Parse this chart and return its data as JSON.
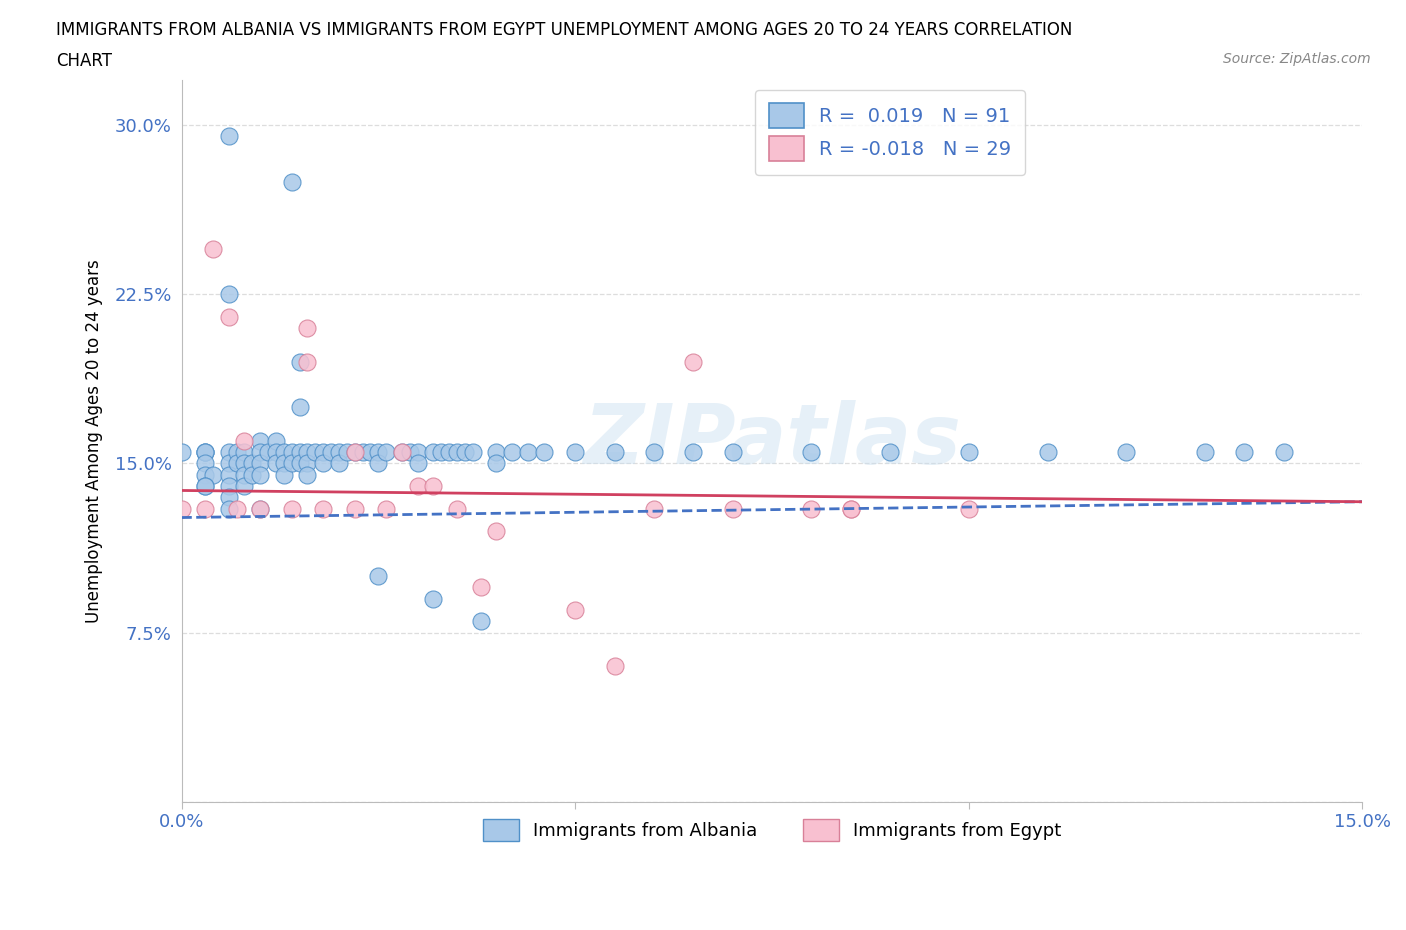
{
  "title_line1": "IMMIGRANTS FROM ALBANIA VS IMMIGRANTS FROM EGYPT UNEMPLOYMENT AMONG AGES 20 TO 24 YEARS CORRELATION",
  "title_line2": "CHART",
  "source_text": "Source: ZipAtlas.com",
  "ylabel": "Unemployment Among Ages 20 to 24 years",
  "xlim": [
    0.0,
    0.15
  ],
  "ylim": [
    0.0,
    0.32
  ],
  "albania_color": "#a8c8e8",
  "albania_edge_color": "#5090c8",
  "egypt_color": "#f8c0d0",
  "egypt_edge_color": "#d88098",
  "albania_line_color": "#4472c4",
  "egypt_line_color": "#d04060",
  "watermark": "ZIPatlas",
  "tick_label_color": "#4472c4",
  "background_color": "#ffffff",
  "grid_color": "#dddddd",
  "albania_x": [
    0.006,
    0.014,
    0.006,
    0.015,
    0.015,
    0.003,
    0.006,
    0.0,
    0.003,
    0.003,
    0.003,
    0.003,
    0.004,
    0.003,
    0.003,
    0.006,
    0.006,
    0.006,
    0.006,
    0.006,
    0.007,
    0.007,
    0.008,
    0.008,
    0.008,
    0.008,
    0.009,
    0.009,
    0.01,
    0.01,
    0.01,
    0.01,
    0.01,
    0.011,
    0.012,
    0.012,
    0.012,
    0.013,
    0.013,
    0.013,
    0.014,
    0.014,
    0.015,
    0.015,
    0.016,
    0.016,
    0.016,
    0.017,
    0.018,
    0.018,
    0.019,
    0.02,
    0.02,
    0.021,
    0.022,
    0.023,
    0.024,
    0.025,
    0.025,
    0.026,
    0.028,
    0.029,
    0.03,
    0.03,
    0.032,
    0.033,
    0.034,
    0.035,
    0.036,
    0.037,
    0.04,
    0.04,
    0.042,
    0.044,
    0.046,
    0.05,
    0.055,
    0.06,
    0.065,
    0.07,
    0.08,
    0.09,
    0.1,
    0.11,
    0.12,
    0.13,
    0.135,
    0.14,
    0.025,
    0.032,
    0.038
  ],
  "albania_y": [
    0.295,
    0.275,
    0.225,
    0.195,
    0.175,
    0.155,
    0.155,
    0.155,
    0.155,
    0.155,
    0.15,
    0.145,
    0.145,
    0.14,
    0.14,
    0.15,
    0.145,
    0.14,
    0.135,
    0.13,
    0.155,
    0.15,
    0.155,
    0.15,
    0.145,
    0.14,
    0.15,
    0.145,
    0.16,
    0.155,
    0.15,
    0.145,
    0.13,
    0.155,
    0.16,
    0.155,
    0.15,
    0.155,
    0.15,
    0.145,
    0.155,
    0.15,
    0.155,
    0.15,
    0.155,
    0.15,
    0.145,
    0.155,
    0.155,
    0.15,
    0.155,
    0.155,
    0.15,
    0.155,
    0.155,
    0.155,
    0.155,
    0.155,
    0.15,
    0.155,
    0.155,
    0.155,
    0.155,
    0.15,
    0.155,
    0.155,
    0.155,
    0.155,
    0.155,
    0.155,
    0.155,
    0.15,
    0.155,
    0.155,
    0.155,
    0.155,
    0.155,
    0.155,
    0.155,
    0.155,
    0.155,
    0.155,
    0.155,
    0.155,
    0.155,
    0.155,
    0.155,
    0.155,
    0.1,
    0.09,
    0.08
  ],
  "egypt_x": [
    0.004,
    0.006,
    0.016,
    0.016,
    0.008,
    0.022,
    0.028,
    0.03,
    0.032,
    0.038,
    0.04,
    0.05,
    0.055,
    0.065,
    0.08,
    0.085,
    0.0,
    0.003,
    0.007,
    0.01,
    0.014,
    0.018,
    0.022,
    0.026,
    0.035,
    0.06,
    0.07,
    0.085,
    0.1
  ],
  "egypt_y": [
    0.245,
    0.215,
    0.21,
    0.195,
    0.16,
    0.155,
    0.155,
    0.14,
    0.14,
    0.095,
    0.12,
    0.085,
    0.06,
    0.195,
    0.13,
    0.13,
    0.13,
    0.13,
    0.13,
    0.13,
    0.13,
    0.13,
    0.13,
    0.13,
    0.13,
    0.13,
    0.13,
    0.13,
    0.13
  ],
  "albania_trend_x": [
    0.0,
    0.15
  ],
  "albania_trend_y": [
    0.126,
    0.133
  ],
  "egypt_trend_x": [
    0.0,
    0.15
  ],
  "egypt_trend_y": [
    0.138,
    0.133
  ]
}
